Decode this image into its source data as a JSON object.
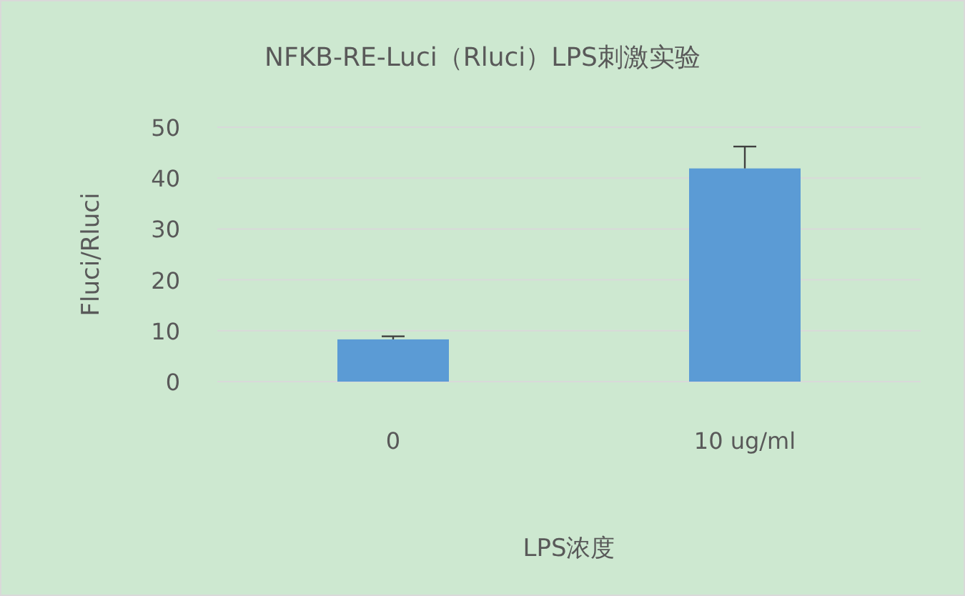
{
  "chart_data": {
    "type": "bar",
    "title": "NFKB-RE-Luci（Rluci）LPS刺激实验",
    "xlabel": "LPS浓度",
    "ylabel": "Fluci/Rluci",
    "categories": [
      "0",
      "10 ug/ml"
    ],
    "values": [
      8.3,
      41.9
    ],
    "errors": [
      [
        8.3,
        8.9
      ],
      [
        41.9,
        46.2
      ]
    ],
    "color": "#5b9bd5",
    "ylim": [
      0,
      50
    ],
    "yticks": [
      0,
      10,
      20,
      30,
      40,
      50
    ],
    "grid": "y"
  }
}
